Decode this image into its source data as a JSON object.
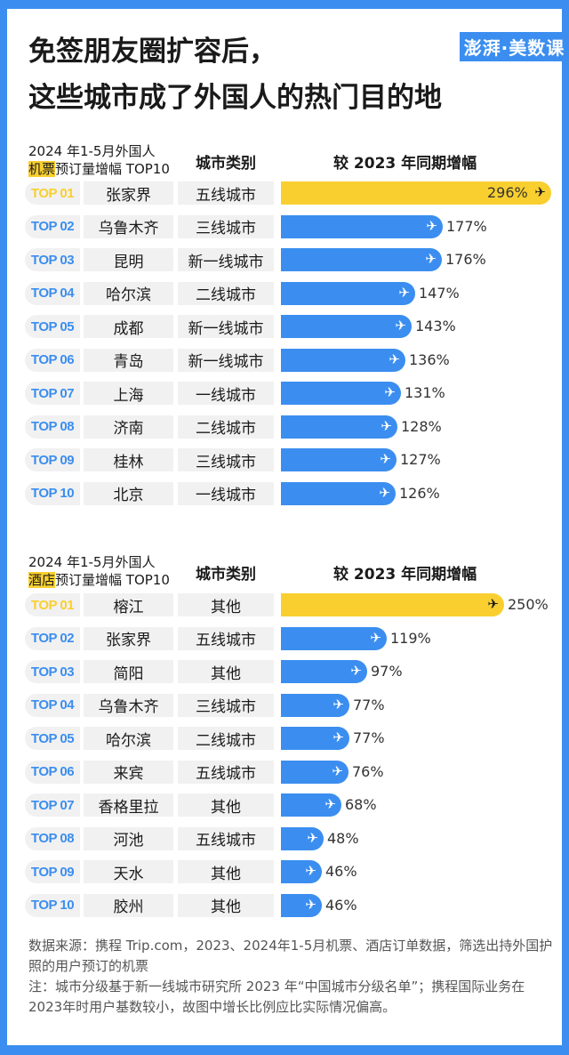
{
  "title_line1": "免签朋友圈扩容后，",
  "title_line2": "这些城市成了外国人的热门目的地",
  "logo": "澎湃·美数课",
  "colors": {
    "border": "#3b8ef0",
    "bar": "#3b8ef0",
    "highlight": "#f9cf2f"
  },
  "chart_data": [
    {
      "type": "bar",
      "title_line1": "2024 年1-5月外国人",
      "title_highlight": "机票",
      "title_rest": "预订量增幅 TOP10",
      "col_category": "城市类别",
      "col_value": "较 2023 年同期增幅",
      "unit": "%",
      "ranks": [
        "TOP 01",
        "TOP 02",
        "TOP 03",
        "TOP 04",
        "TOP 05",
        "TOP 06",
        "TOP 07",
        "TOP 08",
        "TOP 09",
        "TOP 10"
      ],
      "categories": [
        "张家界",
        "乌鲁木齐",
        "昆明",
        "哈尔滨",
        "成都",
        "青岛",
        "上海",
        "济南",
        "桂林",
        "北京"
      ],
      "city_tiers": [
        "五线城市",
        "三线城市",
        "新一线城市",
        "二线城市",
        "新一线城市",
        "新一线城市",
        "一线城市",
        "二线城市",
        "三线城市",
        "一线城市"
      ],
      "values": [
        296,
        177,
        176,
        147,
        143,
        136,
        131,
        128,
        127,
        126
      ],
      "labels": [
        "296%",
        "177%",
        "176%",
        "147%",
        "143%",
        "136%",
        "131%",
        "128%",
        "127%",
        "126%"
      ]
    },
    {
      "type": "bar",
      "title_line1": "2024 年1-5月外国人",
      "title_highlight": "酒店",
      "title_rest": "预订量增幅 TOP10",
      "col_category": "城市类别",
      "col_value": "较 2023 年同期增幅",
      "unit": "%",
      "ranks": [
        "TOP 01",
        "TOP 02",
        "TOP 03",
        "TOP 04",
        "TOP 05",
        "TOP 06",
        "TOP 07",
        "TOP 08",
        "TOP 09",
        "TOP 10"
      ],
      "categories": [
        "榕江",
        "张家界",
        "简阳",
        "乌鲁木齐",
        "哈尔滨",
        "来宾",
        "香格里拉",
        "河池",
        "天水",
        "胶州"
      ],
      "city_tiers": [
        "其他",
        "五线城市",
        "其他",
        "三线城市",
        "二线城市",
        "五线城市",
        "其他",
        "五线城市",
        "其他",
        "其他"
      ],
      "values": [
        250,
        119,
        97,
        77,
        77,
        76,
        68,
        48,
        46,
        46
      ],
      "labels": [
        "250%",
        "119%",
        "97%",
        "77%",
        "77%",
        "76%",
        "68%",
        "48%",
        "46%",
        "46%"
      ]
    }
  ],
  "notes": {
    "source": "数据来源：携程 Trip.com，2023、2024年1-5月机票、酒店订单数据，筛选出持外国护照的用户预订的机票",
    "note": "注：城市分级基于新一线城市研究所 2023 年“中国城市分级名单”；携程国际业务在2023年时用户基数较小，故图中增长比例应比实际情况偏高。"
  }
}
